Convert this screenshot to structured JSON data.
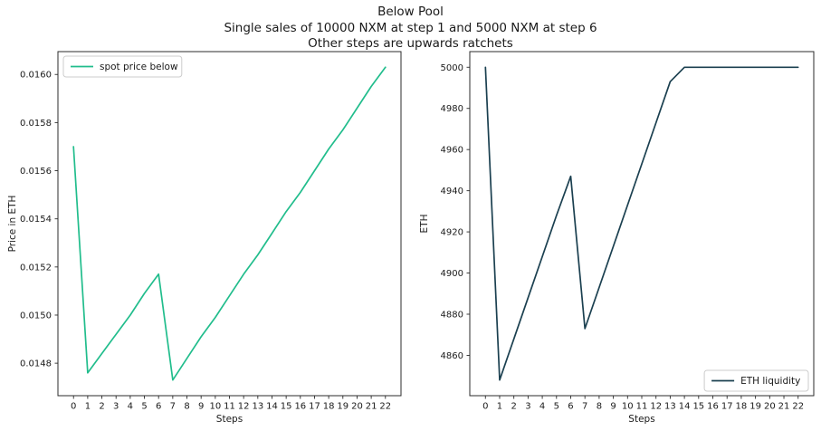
{
  "figure": {
    "title_lines": [
      "Below Pool",
      "Single sales of 10000 NXM at step 1 and 5000 NXM at step 6",
      "Other steps are upwards ratchets"
    ],
    "background_color": "#ffffff",
    "text_color": "#1a1a1a",
    "spine_color": "#2b2b2b",
    "legend_border_color": "#cccccc"
  },
  "chart_data": [
    {
      "type": "line",
      "name": "spot-price-chart",
      "xlabel": "Steps",
      "ylabel": "Price in ETH",
      "legend": {
        "label": "spot price below",
        "position": "top-left"
      },
      "color": "#21bd8c",
      "grid": false,
      "x": [
        0,
        1,
        2,
        3,
        4,
        5,
        6,
        7,
        8,
        9,
        10,
        11,
        12,
        13,
        14,
        15,
        16,
        17,
        18,
        19,
        20,
        21,
        22
      ],
      "y": [
        0.0157,
        0.01476,
        0.01484,
        0.01492,
        0.015,
        0.01509,
        0.01517,
        0.01473,
        0.01482,
        0.01491,
        0.01499,
        0.01508,
        0.01517,
        0.01525,
        0.01534,
        0.01543,
        0.01551,
        0.0156,
        0.01569,
        0.01577,
        0.01586,
        0.01595,
        0.01603
      ],
      "xlim": [
        -1.1,
        23.1
      ],
      "ylim": [
        0.014665,
        0.016095
      ],
      "xticks": [
        0,
        1,
        2,
        3,
        4,
        5,
        6,
        7,
        8,
        9,
        10,
        11,
        12,
        13,
        14,
        15,
        16,
        17,
        18,
        19,
        20,
        21,
        22
      ],
      "yticks": [
        0.0148,
        0.015,
        0.0152,
        0.0154,
        0.0156,
        0.0158,
        0.016
      ],
      "ytick_labels": [
        "0.0148",
        "0.0150",
        "0.0152",
        "0.0154",
        "0.0156",
        "0.0158",
        "0.0160"
      ]
    },
    {
      "type": "line",
      "name": "eth-liquidity-chart",
      "xlabel": "Steps",
      "ylabel": "ETH",
      "legend": {
        "label": "ETH liquidity",
        "position": "bottom-right"
      },
      "color": "#1b4050",
      "grid": false,
      "x": [
        0,
        1,
        2,
        3,
        4,
        5,
        6,
        7,
        8,
        9,
        10,
        11,
        12,
        13,
        14,
        15,
        16,
        17,
        18,
        19,
        20,
        21,
        22
      ],
      "y": [
        5000,
        4848,
        4868,
        4888,
        4908,
        4928,
        4947,
        4873,
        4893,
        4913,
        4933,
        4953,
        4973,
        4993,
        5000,
        5000,
        5000,
        5000,
        5000,
        5000,
        5000,
        5000,
        5000
      ],
      "xlim": [
        -1.1,
        23.1
      ],
      "ylim": [
        4840.4,
        5007.6
      ],
      "xticks": [
        0,
        1,
        2,
        3,
        4,
        5,
        6,
        7,
        8,
        9,
        10,
        11,
        12,
        13,
        14,
        15,
        16,
        17,
        18,
        19,
        20,
        21,
        22
      ],
      "yticks": [
        4860,
        4880,
        4900,
        4920,
        4940,
        4960,
        4980,
        5000
      ],
      "ytick_labels": [
        "4860",
        "4880",
        "4900",
        "4920",
        "4940",
        "4960",
        "4980",
        "5000"
      ]
    }
  ]
}
